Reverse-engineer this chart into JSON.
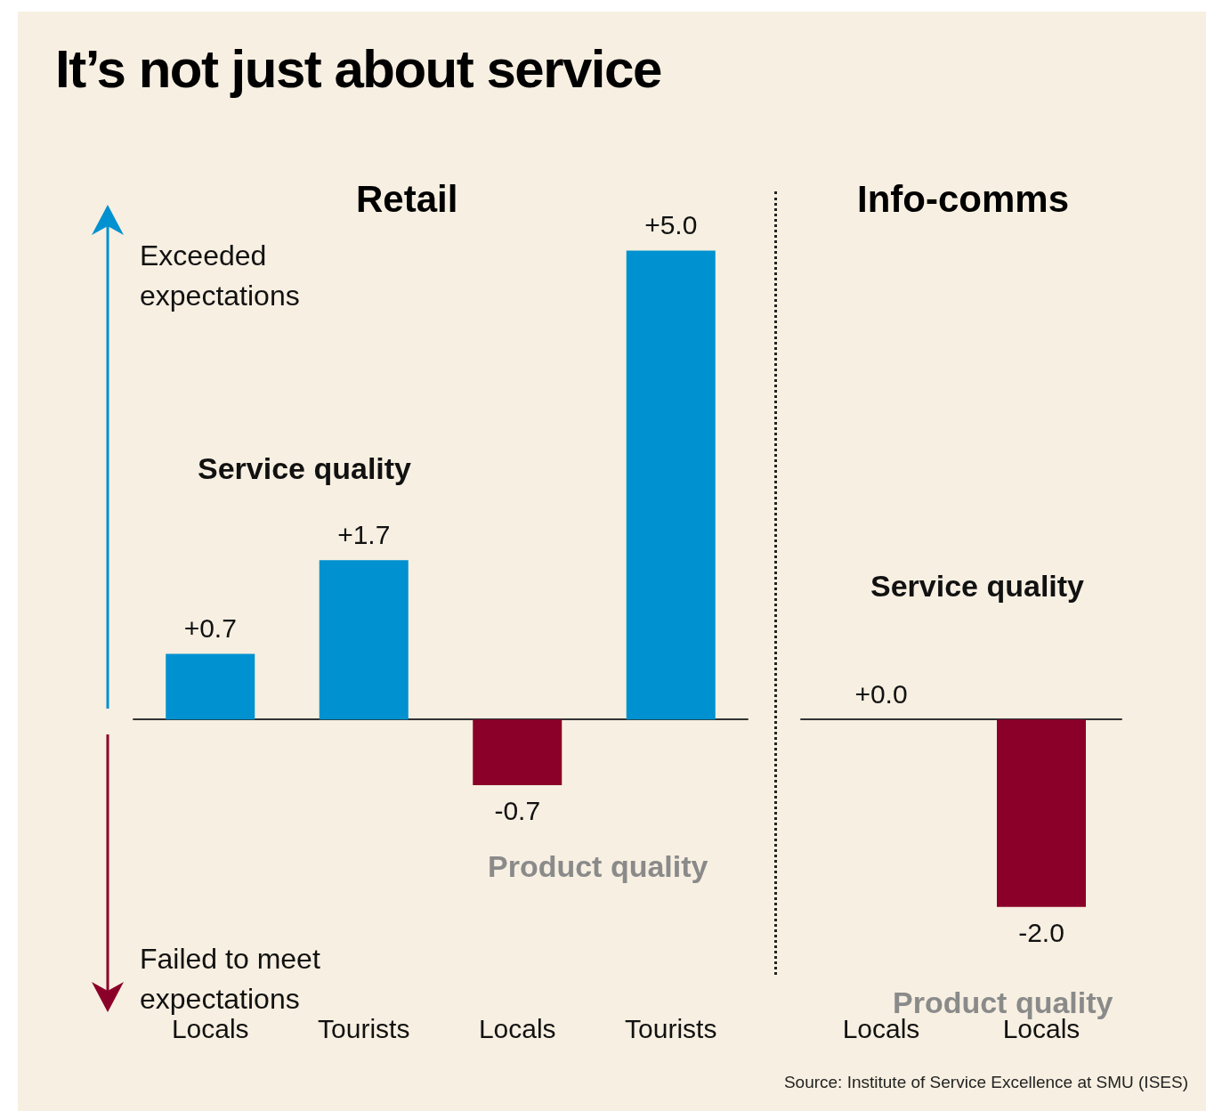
{
  "chart_data": [
    {
      "type": "bar",
      "title": "It’s not just about service",
      "subtitle": "Retail",
      "categories": [
        "Locals",
        "Tourists",
        "Locals",
        "Tourists"
      ],
      "series": [
        {
          "colors": [
            "#0091d0",
            "#0091d0",
            "#8b0029",
            "#0091d0"
          ],
          "values": [
            0.7,
            1.7,
            -0.7,
            5.0
          ],
          "value_labels": [
            "+0.7",
            "+1.7",
            "-0.7",
            "+5.0"
          ]
        }
      ],
      "tick_labels": "x",
      "annotations": [
        "Exceeded expectations",
        "Failed to meet expectations",
        "Service quality",
        "Product quality"
      ]
    },
    {
      "type": "bar",
      "title": "Info-comms",
      "categories": [
        "Locals",
        "Locals"
      ],
      "series": [
        {
          "colors": [
            "#0091d0",
            "#8b0029"
          ],
          "values": [
            0.0,
            -2.0
          ],
          "value_labels": [
            "+0.0",
            "-2.0"
          ]
        }
      ],
      "tick_labels": "x",
      "annotations": [
        "Service quality",
        "Product quality",
        "Source: Institute of Service Excellence at SMU (ISES)"
      ]
    }
  ]
}
